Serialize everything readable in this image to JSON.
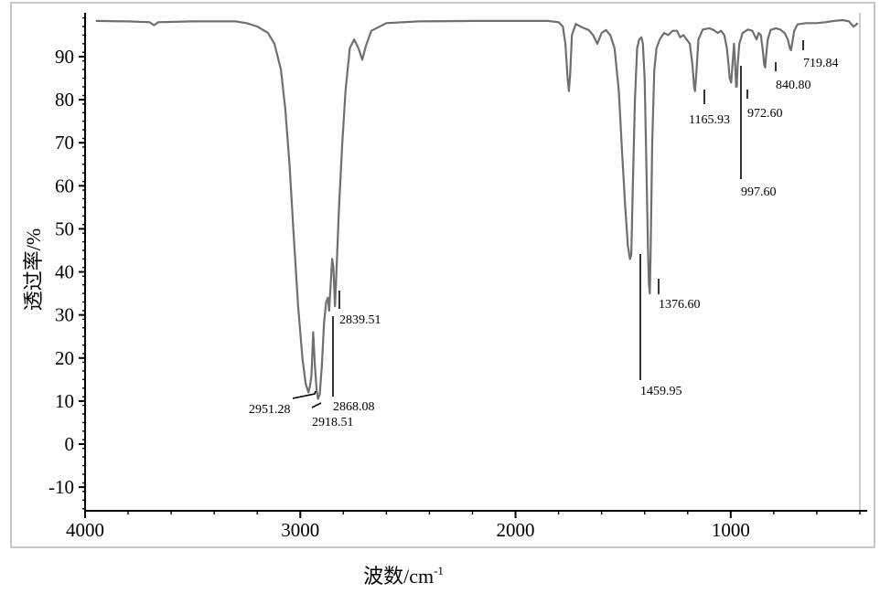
{
  "chart_data": {
    "type": "line",
    "title": "",
    "xlabel": "波数/cm",
    "xlabel_sup": "-1",
    "ylabel": "透过率/%",
    "xlim": [
      4000,
      400
    ],
    "ylim": [
      -15,
      100
    ],
    "x_ticks": [
      4000,
      3000,
      2000,
      1000
    ],
    "x_tick_labels": [
      "4000",
      "3000",
      "2000",
      "1000"
    ],
    "y_ticks": [
      90,
      80,
      70,
      60,
      50,
      40,
      30,
      20,
      10,
      0,
      -10
    ],
    "y_tick_labels": [
      "90",
      "80",
      "70",
      "60",
      "50",
      "40",
      "30",
      "20",
      "10",
      "0",
      "-10"
    ],
    "grid": false,
    "line_color": "#6f6f6f",
    "series": [
      {
        "points": [
          [
            3950,
            98.3
          ],
          [
            3800,
            98.2
          ],
          [
            3700,
            98.0
          ],
          [
            3680,
            97.3
          ],
          [
            3660,
            98.0
          ],
          [
            3500,
            98.2
          ],
          [
            3300,
            98.2
          ],
          [
            3250,
            97.8
          ],
          [
            3200,
            97.0
          ],
          [
            3150,
            95.5
          ],
          [
            3120,
            93.0
          ],
          [
            3090,
            87.0
          ],
          [
            3070,
            78.0
          ],
          [
            3050,
            65.0
          ],
          [
            3030,
            48.0
          ],
          [
            3010,
            32.0
          ],
          [
            2990,
            20.0
          ],
          [
            2975,
            14.0
          ],
          [
            2962,
            12.0
          ],
          [
            2955,
            13.5
          ],
          [
            2948,
            16.0
          ],
          [
            2940,
            26.0
          ],
          [
            2932,
            18.0
          ],
          [
            2924,
            12.5
          ],
          [
            2918,
            10.5
          ],
          [
            2910,
            11.5
          ],
          [
            2900,
            18.0
          ],
          [
            2890,
            28.0
          ],
          [
            2880,
            33.0
          ],
          [
            2872,
            34.0
          ],
          [
            2866,
            31.0
          ],
          [
            2860,
            36.0
          ],
          [
            2852,
            43.0
          ],
          [
            2846,
            41.0
          ],
          [
            2839,
            32.0
          ],
          [
            2832,
            40.0
          ],
          [
            2820,
            55.0
          ],
          [
            2805,
            70.0
          ],
          [
            2790,
            82.0
          ],
          [
            2770,
            92.0
          ],
          [
            2750,
            94.0
          ],
          [
            2730,
            92.0
          ],
          [
            2712,
            89.3
          ],
          [
            2695,
            92.5
          ],
          [
            2670,
            96.0
          ],
          [
            2600,
            97.8
          ],
          [
            2450,
            98.2
          ],
          [
            2200,
            98.3
          ],
          [
            2000,
            98.3
          ],
          [
            1850,
            98.3
          ],
          [
            1800,
            98.0
          ],
          [
            1780,
            97.0
          ],
          [
            1768,
            93.0
          ],
          [
            1758,
            85.0
          ],
          [
            1752,
            82.0
          ],
          [
            1746,
            86.0
          ],
          [
            1738,
            95.0
          ],
          [
            1720,
            97.6
          ],
          [
            1690,
            96.8
          ],
          [
            1660,
            96.2
          ],
          [
            1640,
            95.0
          ],
          [
            1620,
            93.0
          ],
          [
            1600,
            95.5
          ],
          [
            1580,
            96.2
          ],
          [
            1560,
            95.0
          ],
          [
            1540,
            92.0
          ],
          [
            1520,
            82.0
          ],
          [
            1505,
            68.0
          ],
          [
            1490,
            55.0
          ],
          [
            1478,
            46.0
          ],
          [
            1468,
            43.0
          ],
          [
            1462,
            44.0
          ],
          [
            1455,
            60.0
          ],
          [
            1445,
            80.0
          ],
          [
            1435,
            92.0
          ],
          [
            1425,
            94.0
          ],
          [
            1415,
            94.5
          ],
          [
            1408,
            93.0
          ],
          [
            1400,
            85.0
          ],
          [
            1392,
            65.0
          ],
          [
            1385,
            46.0
          ],
          [
            1380,
            37.0
          ],
          [
            1376,
            35.0
          ],
          [
            1372,
            45.0
          ],
          [
            1365,
            70.0
          ],
          [
            1355,
            87.0
          ],
          [
            1345,
            92.0
          ],
          [
            1330,
            94.0
          ],
          [
            1310,
            95.5
          ],
          [
            1290,
            95.0
          ],
          [
            1270,
            96.0
          ],
          [
            1250,
            96.0
          ],
          [
            1235,
            94.5
          ],
          [
            1220,
            95.0
          ],
          [
            1205,
            94.0
          ],
          [
            1190,
            93.0
          ],
          [
            1178,
            88.0
          ],
          [
            1170,
            83.0
          ],
          [
            1166,
            82.0
          ],
          [
            1160,
            86.0
          ],
          [
            1150,
            94.0
          ],
          [
            1130,
            96.3
          ],
          [
            1100,
            96.6
          ],
          [
            1080,
            96.2
          ],
          [
            1060,
            95.5
          ],
          [
            1045,
            96.0
          ],
          [
            1030,
            95.0
          ],
          [
            1018,
            92.0
          ],
          [
            1010,
            88.0
          ],
          [
            1005,
            85.0
          ],
          [
            998,
            84.0
          ],
          [
            992,
            88.0
          ],
          [
            985,
            93.0
          ],
          [
            980,
            89.0
          ],
          [
            975,
            83.0
          ],
          [
            972,
            83.0
          ],
          [
            968,
            88.0
          ],
          [
            960,
            93.0
          ],
          [
            945,
            95.5
          ],
          [
            920,
            96.3
          ],
          [
            900,
            96.0
          ],
          [
            880,
            94.0
          ],
          [
            870,
            95.5
          ],
          [
            860,
            95.0
          ],
          [
            850,
            91.0
          ],
          [
            844,
            88.0
          ],
          [
            840,
            87.5
          ],
          [
            836,
            90.0
          ],
          [
            828,
            94.0
          ],
          [
            815,
            96.2
          ],
          [
            790,
            96.6
          ],
          [
            770,
            96.3
          ],
          [
            750,
            95.5
          ],
          [
            735,
            94.0
          ],
          [
            725,
            92.0
          ],
          [
            720,
            91.5
          ],
          [
            715,
            93.0
          ],
          [
            705,
            96.0
          ],
          [
            690,
            97.5
          ],
          [
            650,
            97.8
          ],
          [
            600,
            97.8
          ],
          [
            560,
            98.0
          ],
          [
            520,
            98.3
          ],
          [
            480,
            98.5
          ],
          [
            450,
            98.2
          ],
          [
            430,
            97.0
          ],
          [
            420,
            97.3
          ],
          [
            410,
            97.8
          ]
        ]
      }
    ],
    "peak_labels": [
      {
        "wavenumber": 2951.28,
        "text": "2951.28"
      },
      {
        "wavenumber": 2918.51,
        "text": "2918.51"
      },
      {
        "wavenumber": 2868.08,
        "text": "2868.08"
      },
      {
        "wavenumber": 2839.51,
        "text": "2839.51"
      },
      {
        "wavenumber": 1459.95,
        "text": "1459.95"
      },
      {
        "wavenumber": 1376.6,
        "text": "1376.60"
      },
      {
        "wavenumber": 1165.93,
        "text": "1165.93"
      },
      {
        "wavenumber": 997.6,
        "text": "997.60"
      },
      {
        "wavenumber": 972.6,
        "text": "972.60"
      },
      {
        "wavenumber": 840.8,
        "text": "840.80"
      },
      {
        "wavenumber": 719.84,
        "text": "719.84"
      }
    ]
  }
}
